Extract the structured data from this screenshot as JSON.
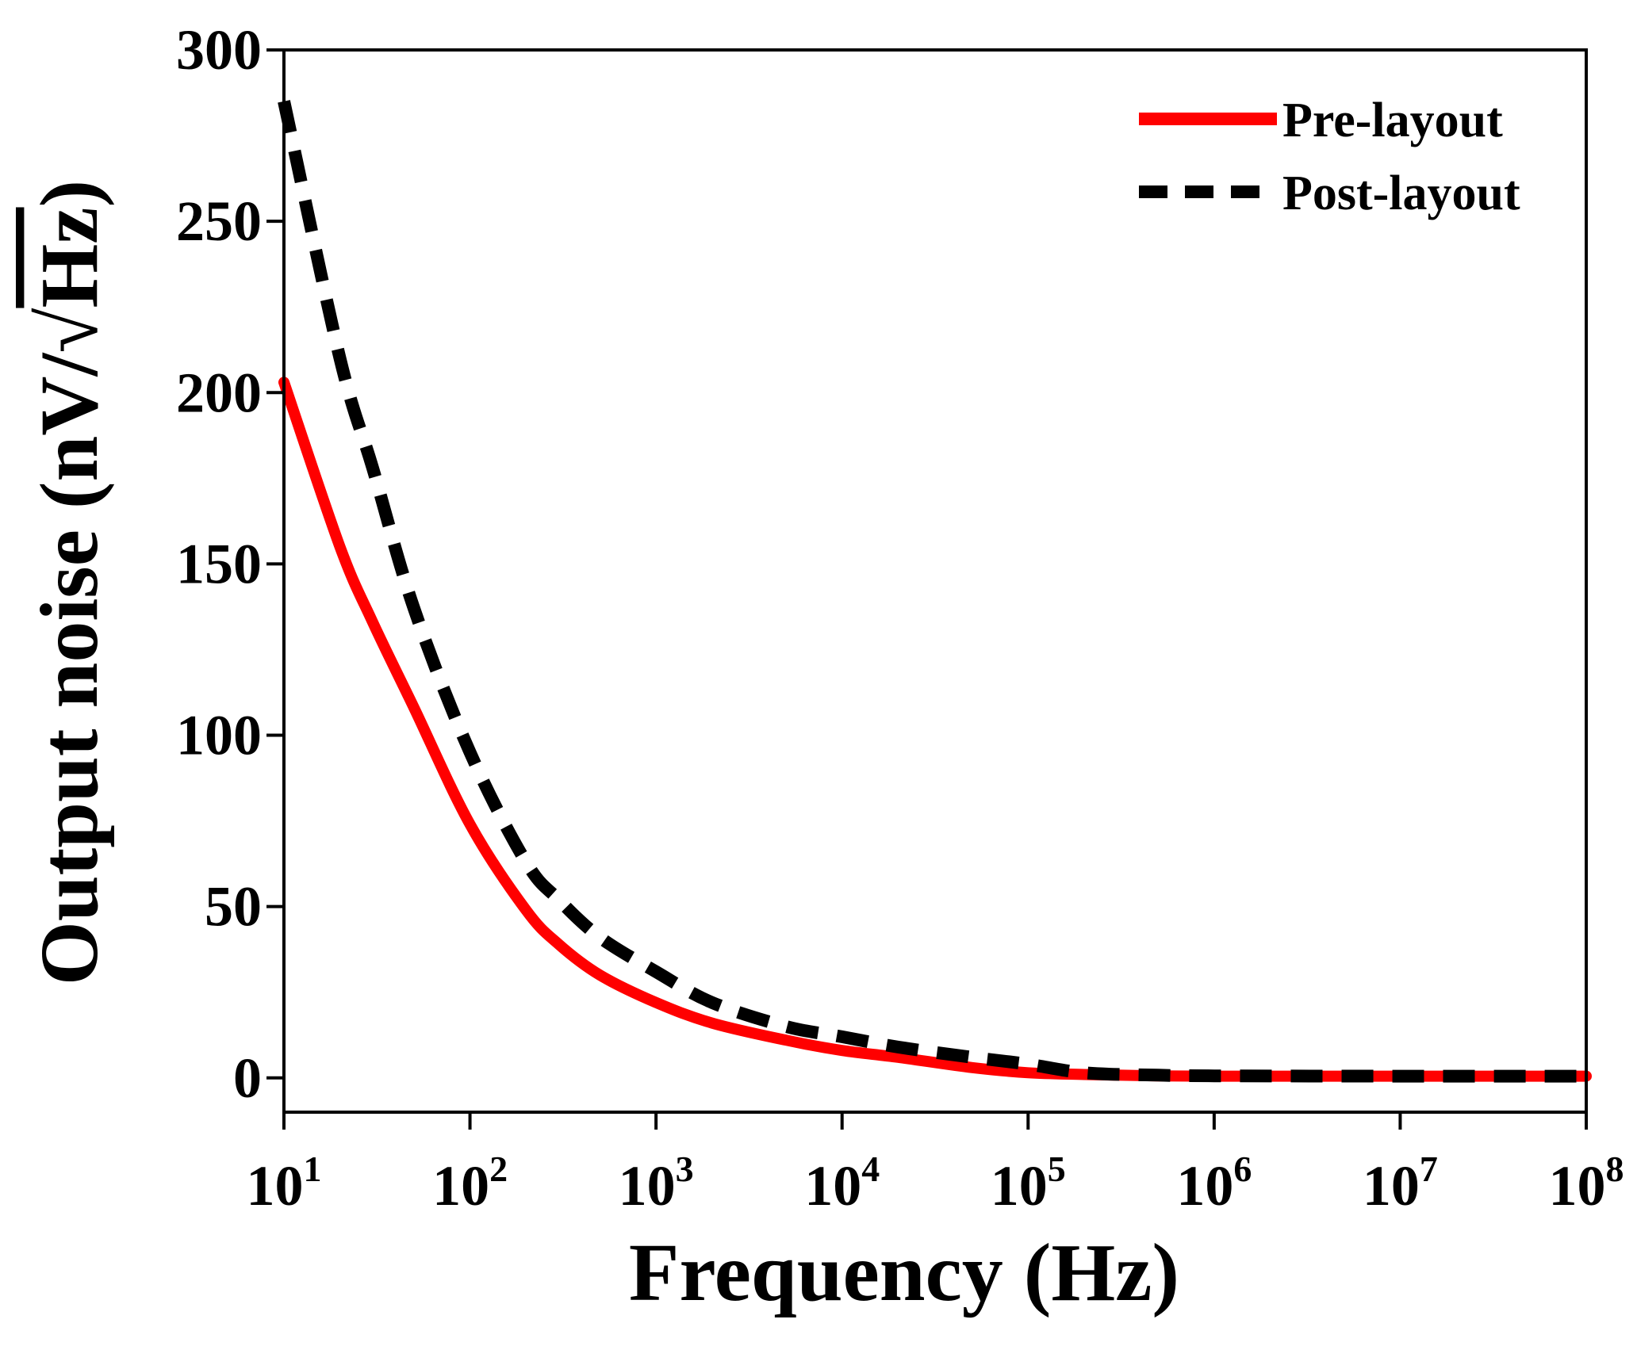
{
  "chart_data": {
    "type": "line",
    "title": "",
    "xlabel": "Frequency (Hz)",
    "ylabel": {
      "prefix": "Output noise (nV/",
      "radical": "√",
      "radicand": "Hz",
      "suffix": ")"
    },
    "xscale": "log",
    "xlim": [
      10,
      100000000
    ],
    "ylim": [
      -10,
      300
    ],
    "grid": false,
    "legend_position": "top-right",
    "x_ticks": [
      {
        "base": "10",
        "exp": "1",
        "value": 10
      },
      {
        "base": "10",
        "exp": "2",
        "value": 100
      },
      {
        "base": "10",
        "exp": "3",
        "value": 1000
      },
      {
        "base": "10",
        "exp": "4",
        "value": 10000
      },
      {
        "base": "10",
        "exp": "5",
        "value": 100000
      },
      {
        "base": "10",
        "exp": "6",
        "value": 1000000
      },
      {
        "base": "10",
        "exp": "7",
        "value": 10000000
      },
      {
        "base": "10",
        "exp": "8",
        "value": 100000000
      }
    ],
    "y_ticks": [
      "0",
      "50",
      "100",
      "150",
      "200",
      "250",
      "300"
    ],
    "series": [
      {
        "name": "Pre-layout",
        "color": "#ff0000",
        "style": "solid",
        "x": [
          10,
          20,
          30,
          50,
          100,
          200,
          300,
          500,
          1000,
          2000,
          5000,
          10000,
          20000,
          50000,
          100000,
          200000,
          500000,
          1000000,
          10000000,
          100000000
        ],
        "values": [
          203,
          155,
          133,
          108,
          74,
          49,
          39,
          30,
          22,
          16,
          11,
          8,
          6,
          3,
          1.5,
          1,
          0.6,
          0.5,
          0.5,
          0.5
        ]
      },
      {
        "name": "Post-layout",
        "color": "#000000",
        "style": "dashed",
        "x": [
          10,
          20,
          30,
          50,
          100,
          200,
          300,
          500,
          1000,
          2000,
          5000,
          10000,
          20000,
          50000,
          100000,
          200000,
          500000,
          1000000,
          10000000,
          100000000
        ],
        "values": [
          285,
          210,
          178,
          137,
          95,
          63,
          52,
          41,
          31,
          22,
          15,
          12,
          9,
          6,
          4,
          1.5,
          0.8,
          0.6,
          0.5,
          0.5
        ]
      }
    ]
  }
}
